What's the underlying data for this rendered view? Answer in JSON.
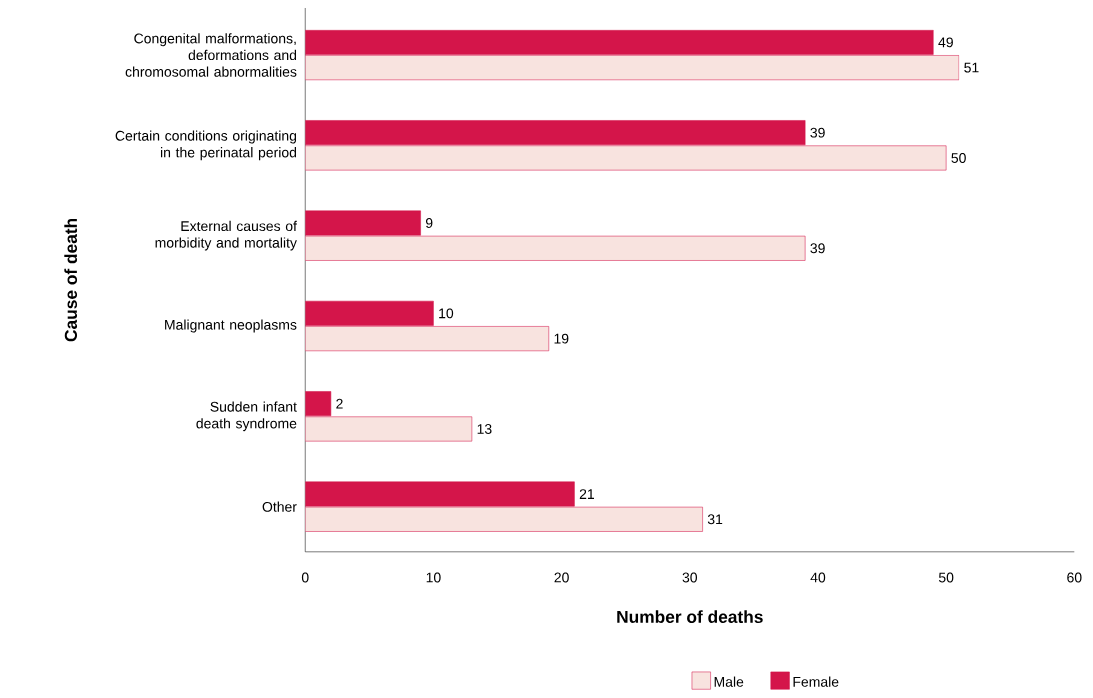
{
  "chart_data": {
    "type": "bar",
    "orientation": "horizontal",
    "xlabel": "Number of deaths",
    "ylabel": "Cause of death",
    "categories": [
      "Congenital malformations, deformations and chromosomal abnormalities",
      "Certain conditions originating in the perinatal period",
      "External causes of morbidity and mortality",
      "Malignant neoplasms",
      "Sudden infant death syndrome",
      "Other"
    ],
    "series": [
      {
        "name": "Male",
        "color": "#f8e3df",
        "values": [
          51,
          50,
          39,
          19,
          13,
          31
        ]
      },
      {
        "name": "Female",
        "color": "#d4154a",
        "values": [
          49,
          39,
          9,
          10,
          2,
          21
        ]
      }
    ],
    "xlim": [
      0,
      60
    ],
    "xticks": [
      0,
      10,
      20,
      30,
      40,
      50,
      60
    ],
    "data_labels": true,
    "legend": "bottom",
    "grid": false
  }
}
